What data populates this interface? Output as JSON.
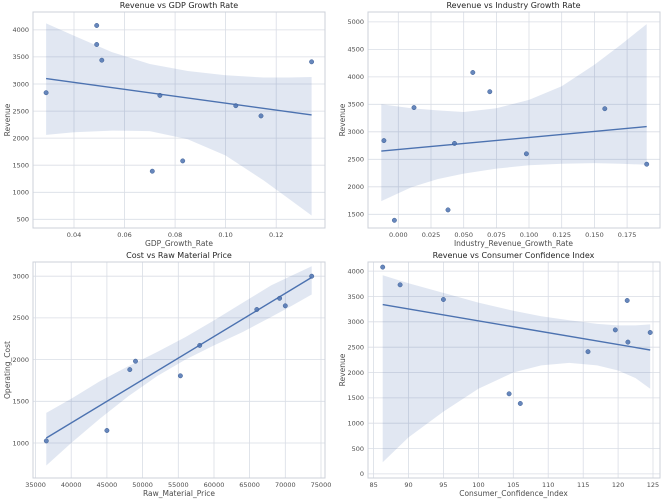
{
  "figure": {
    "background": "#ffffff",
    "accent": "#4c72b0",
    "point_edge": "#3d5f96",
    "band_color": "rgba(76,114,176,0.17)",
    "grid_color": "#d9dde5",
    "spine_color": "#ccd1da",
    "tick_color": "#4d4d4d",
    "title_color": "#262626",
    "grid": true,
    "legend": false
  },
  "chart_data": [
    {
      "type": "scatter",
      "title": "Revenue vs GDP Growth Rate",
      "xlabel": "GDP_Growth_Rate",
      "ylabel": "Revenue",
      "xlim": [
        0.0238,
        0.1393
      ],
      "ylim": [
        340,
        4330
      ],
      "xticks": [
        0.04,
        0.06,
        0.08,
        0.1,
        0.12
      ],
      "xtick_labels": [
        "0.04",
        "0.06",
        "0.08",
        "0.10",
        "0.12"
      ],
      "yticks": [
        500,
        1000,
        1500,
        2000,
        2500,
        3000,
        3500,
        4000
      ],
      "ytick_labels": [
        "500",
        "1000",
        "1500",
        "2000",
        "2500",
        "3000",
        "3500",
        "4000"
      ],
      "points": [
        [
          0.029,
          2840
        ],
        [
          0.049,
          4080
        ],
        [
          0.049,
          3730
        ],
        [
          0.051,
          3440
        ],
        [
          0.071,
          1390
        ],
        [
          0.074,
          2790
        ],
        [
          0.083,
          1580
        ],
        [
          0.104,
          2600
        ],
        [
          0.114,
          2410
        ],
        [
          0.134,
          3410
        ]
      ],
      "regression_line": [
        [
          0.029,
          3100
        ],
        [
          0.134,
          2430
        ]
      ],
      "ci_band": [
        [
          0.029,
          4120,
          2060
        ],
        [
          0.04,
          3890,
          2110
        ],
        [
          0.055,
          3590,
          2140
        ],
        [
          0.07,
          3370,
          2130
        ],
        [
          0.085,
          3240,
          1980
        ],
        [
          0.1,
          3160,
          1680
        ],
        [
          0.115,
          3120,
          1220
        ],
        [
          0.125,
          3120,
          880
        ],
        [
          0.134,
          3130,
          570
        ]
      ]
    },
    {
      "type": "scatter",
      "title": "Revenue vs Industry Growth Rate",
      "xlabel": "Industry_Revenue_Growth_Rate",
      "ylabel": "Revenue",
      "xlim": [
        -0.0232,
        0.2002
      ],
      "ylim": [
        1250,
        5180
      ],
      "xticks": [
        0.0,
        0.025,
        0.05,
        0.075,
        0.1,
        0.125,
        0.15,
        0.175
      ],
      "xtick_labels": [
        "0.000",
        "0.025",
        "0.050",
        "0.075",
        "0.100",
        "0.125",
        "0.150",
        "0.175"
      ],
      "yticks": [
        1500,
        2000,
        2500,
        3000,
        3500,
        4000,
        4500,
        5000
      ],
      "ytick_labels": [
        "1500",
        "2000",
        "2500",
        "3000",
        "3500",
        "4000",
        "4500",
        "5000"
      ],
      "points": [
        [
          -0.011,
          2840
        ],
        [
          -0.003,
          1390
        ],
        [
          0.012,
          3440
        ],
        [
          0.038,
          1580
        ],
        [
          0.043,
          2790
        ],
        [
          0.057,
          4080
        ],
        [
          0.07,
          3730
        ],
        [
          0.098,
          2600
        ],
        [
          0.158,
          3420
        ],
        [
          0.19,
          2410
        ]
      ],
      "regression_line": [
        [
          -0.013,
          2650
        ],
        [
          0.19,
          3095
        ]
      ],
      "ci_band": [
        [
          -0.013,
          3500,
          1740
        ],
        [
          0.01,
          3430,
          1990
        ],
        [
          0.03,
          3390,
          2140
        ],
        [
          0.05,
          3360,
          2240
        ],
        [
          0.075,
          3430,
          2330
        ],
        [
          0.1,
          3580,
          2390
        ],
        [
          0.125,
          3830,
          2420
        ],
        [
          0.15,
          4220,
          2430
        ],
        [
          0.17,
          4580,
          2420
        ],
        [
          0.19,
          4960,
          2400
        ]
      ]
    },
    {
      "type": "scatter",
      "title": "Cost vs Raw Material Price",
      "xlabel": "Raw_Material_Price",
      "ylabel": "Operating_Cost",
      "xlim": [
        34640,
        75560
      ],
      "ylim": [
        580,
        3170
      ],
      "xticks": [
        35000,
        40000,
        45000,
        50000,
        55000,
        60000,
        65000,
        70000,
        75000
      ],
      "xtick_labels": [
        "35000",
        "40000",
        "45000",
        "50000",
        "55000",
        "60000",
        "65000",
        "70000",
        "75000"
      ],
      "yticks": [
        1000,
        1500,
        2000,
        2500,
        3000
      ],
      "ytick_labels": [
        "1000",
        "1500",
        "2000",
        "2500",
        "3000"
      ],
      "points": [
        [
          36500,
          1025
        ],
        [
          45000,
          1150
        ],
        [
          48200,
          1880
        ],
        [
          49000,
          1980
        ],
        [
          55300,
          1805
        ],
        [
          58000,
          2170
        ],
        [
          66000,
          2600
        ],
        [
          69200,
          2735
        ],
        [
          70000,
          2645
        ],
        [
          73700,
          3000
        ]
      ],
      "regression_line": [
        [
          36500,
          1060
        ],
        [
          73700,
          2985
        ]
      ],
      "ci_band": [
        [
          36500,
          1360,
          730
        ],
        [
          40000,
          1530,
          1000
        ],
        [
          44000,
          1740,
          1290
        ],
        [
          48000,
          1920,
          1560
        ],
        [
          52000,
          2090,
          1800
        ],
        [
          56000,
          2270,
          2000
        ],
        [
          60000,
          2470,
          2170
        ],
        [
          64000,
          2680,
          2330
        ],
        [
          68000,
          2890,
          2510
        ],
        [
          71000,
          3010,
          2650
        ],
        [
          73700,
          3120,
          2780
        ]
      ]
    },
    {
      "type": "scatter",
      "title": "Revenue vs Consumer Confidence Index",
      "xlabel": "Consumer_Confidence_Index",
      "ylabel": "Revenue",
      "xlim": [
        84.2,
        126.0
      ],
      "ylim": [
        -80,
        4180
      ],
      "xticks": [
        85,
        90,
        95,
        100,
        105,
        110,
        115,
        120,
        125
      ],
      "xtick_labels": [
        "85",
        "90",
        "95",
        "100",
        "105",
        "110",
        "115",
        "120",
        "125"
      ],
      "yticks": [
        0,
        500,
        1000,
        1500,
        2000,
        2500,
        3000,
        3500,
        4000
      ],
      "ytick_labels": [
        "0",
        "500",
        "1000",
        "1500",
        "2000",
        "2500",
        "3000",
        "3500",
        "4000"
      ],
      "points": [
        [
          86.3,
          4080
        ],
        [
          88.8,
          3730
        ],
        [
          95.0,
          3440
        ],
        [
          104.4,
          1580
        ],
        [
          106.0,
          1390
        ],
        [
          115.7,
          2410
        ],
        [
          119.6,
          2840
        ],
        [
          121.3,
          3420
        ],
        [
          121.4,
          2600
        ],
        [
          124.6,
          2790
        ]
      ],
      "regression_line": [
        [
          86.3,
          3340
        ],
        [
          124.6,
          2445
        ]
      ],
      "ci_band": [
        [
          86.3,
          3920,
          230
        ],
        [
          90,
          3760,
          720
        ],
        [
          95,
          3570,
          1230
        ],
        [
          100,
          3380,
          1680
        ],
        [
          105,
          3220,
          2000
        ],
        [
          109,
          3110,
          2140
        ],
        [
          113,
          3030,
          2190
        ],
        [
          117,
          2960,
          2140
        ],
        [
          120,
          2930,
          2040
        ],
        [
          122.5,
          2930,
          1890
        ],
        [
          124.6,
          2950,
          1680
        ]
      ]
    }
  ]
}
